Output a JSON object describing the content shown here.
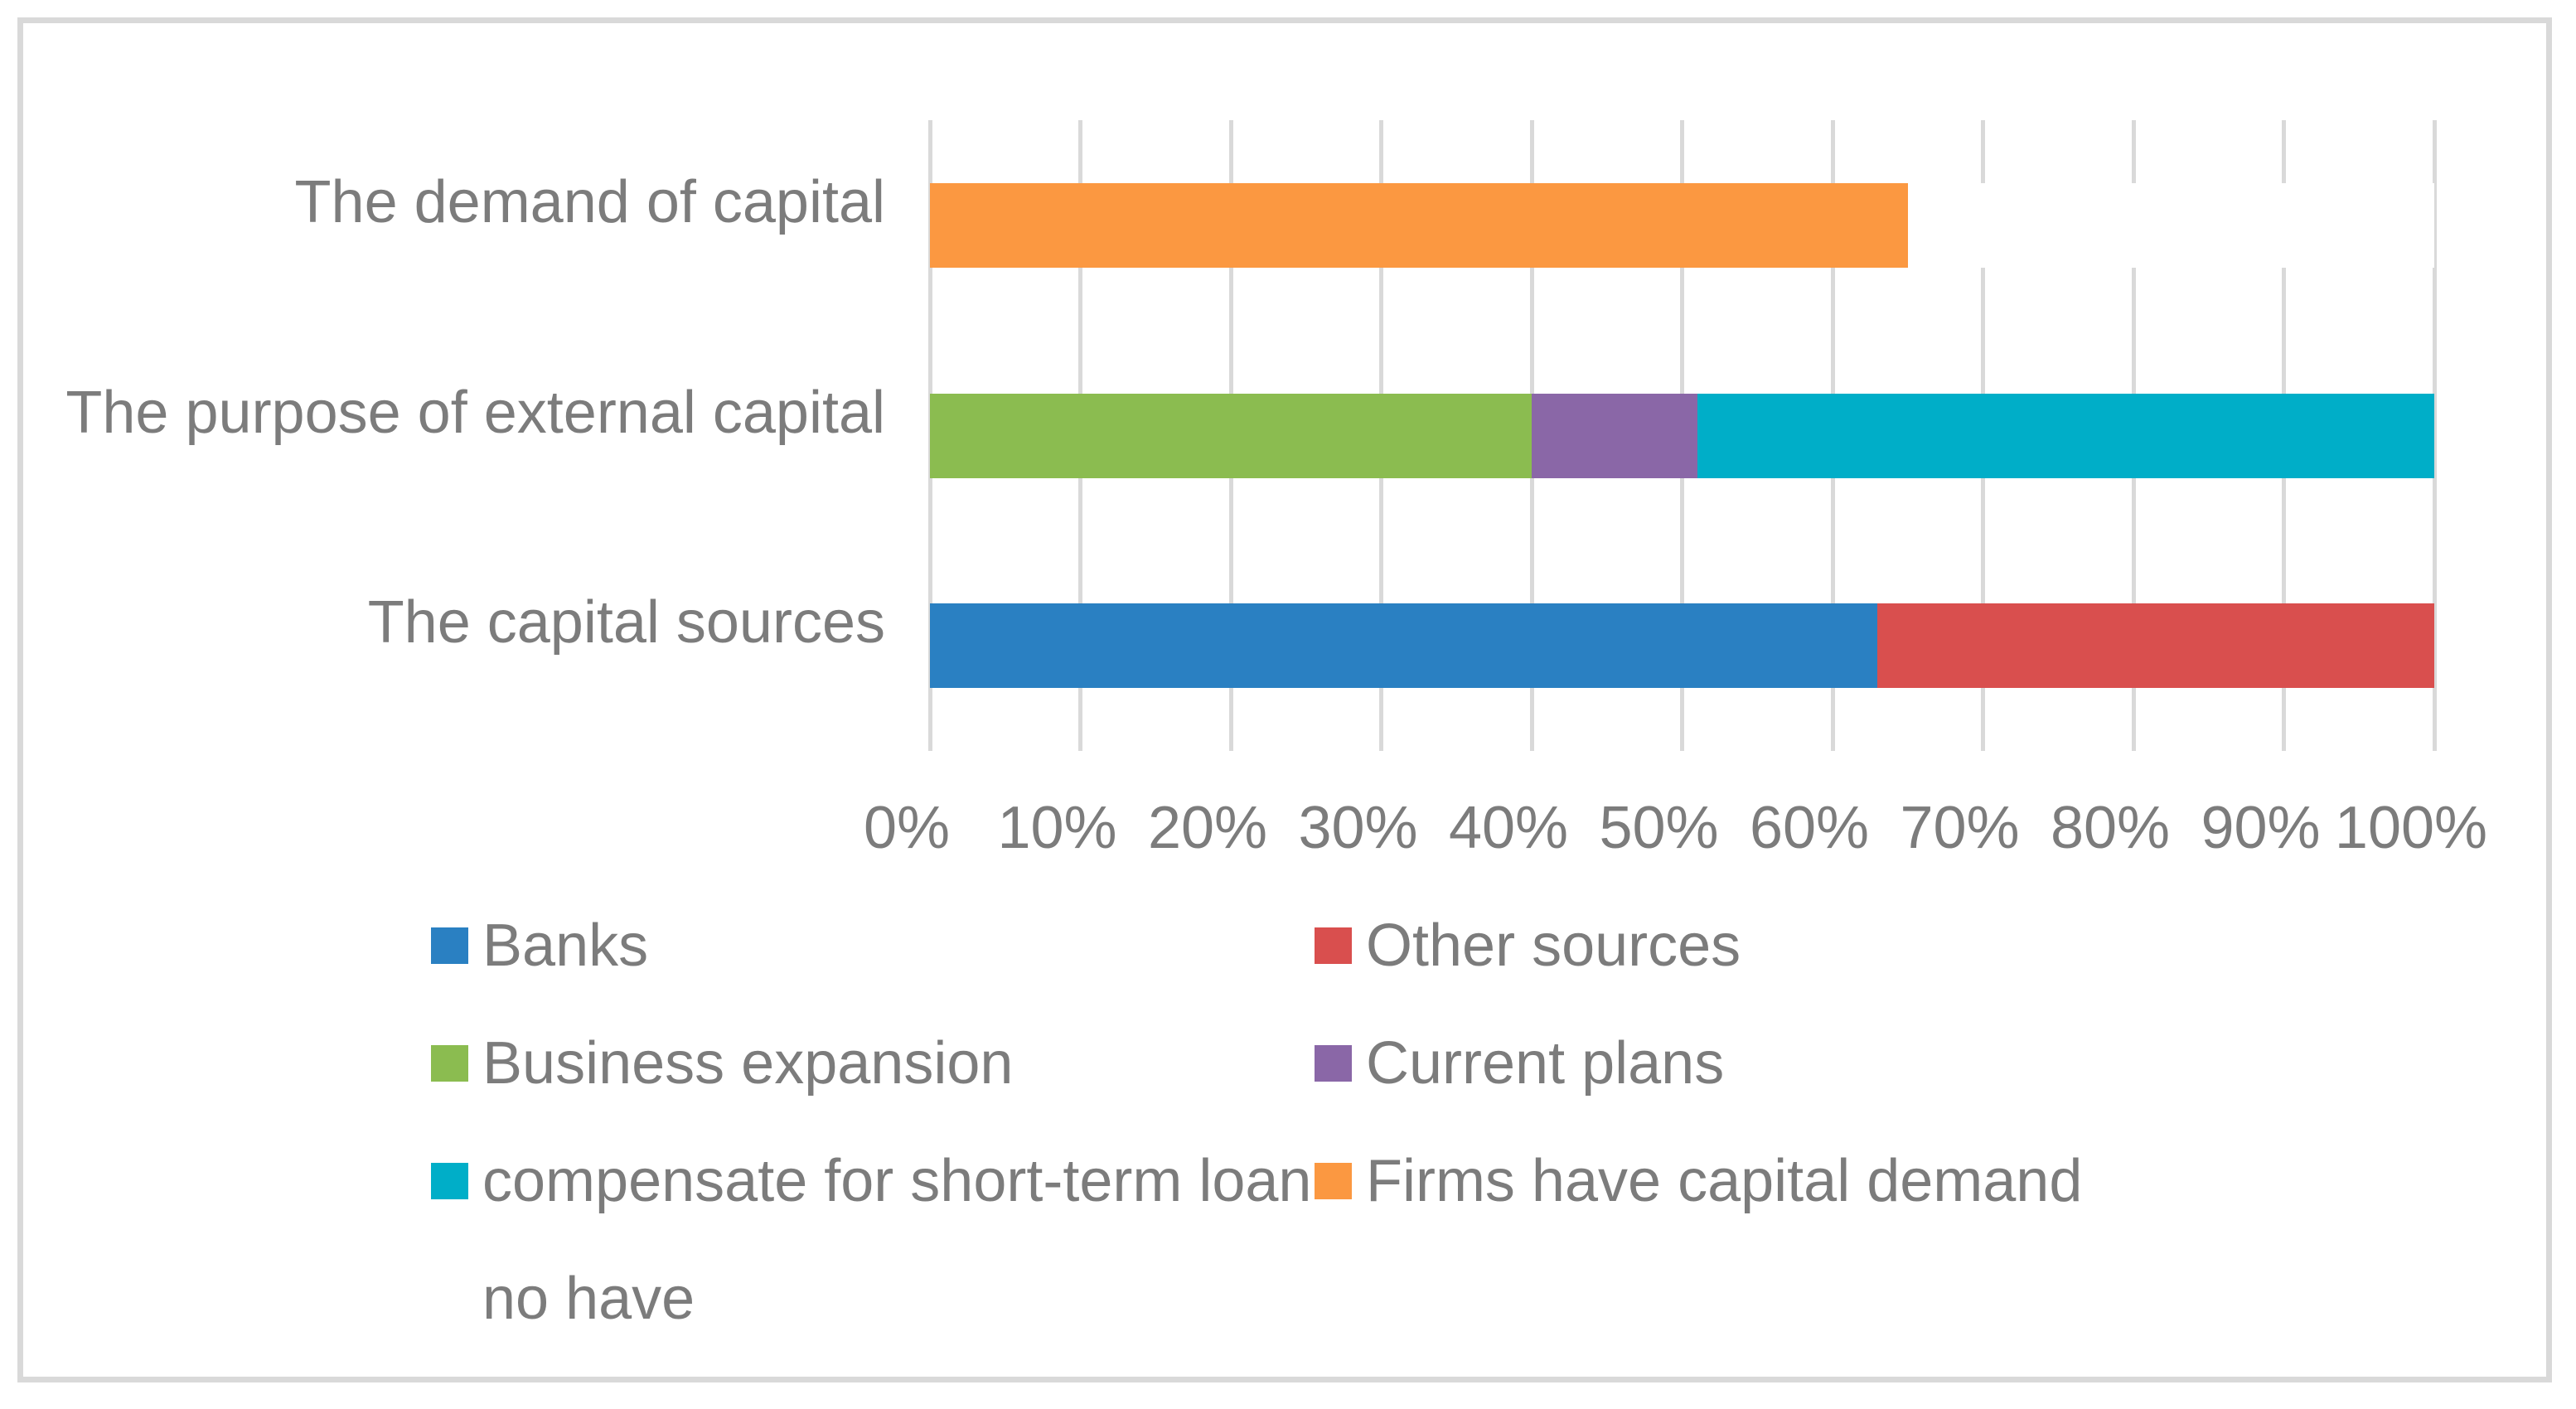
{
  "chart_data": {
    "type": "bar",
    "orientation": "horizontal",
    "stacked": true,
    "title": "",
    "xlabel": "",
    "ylabel": "",
    "xlim": [
      0,
      100
    ],
    "grid": true,
    "legend_position": "bottom",
    "x_ticks": [
      "0%",
      "10%",
      "20%",
      "30%",
      "40%",
      "50%",
      "60%",
      "70%",
      "80%",
      "90%",
      "100%"
    ],
    "categories": [
      "The demand of capital",
      "The purpose of external capital",
      "The capital sources"
    ],
    "series": [
      {
        "name": "Banks",
        "color": "#2A80C2",
        "values": [
          0,
          0,
          63
        ]
      },
      {
        "name": "Other sources",
        "color": "#D94F4E",
        "values": [
          0,
          0,
          37
        ]
      },
      {
        "name": "Business expansion",
        "color": "#8BBC50",
        "values": [
          0,
          40,
          0
        ]
      },
      {
        "name": "Current plans",
        "color": "#8A67A7",
        "values": [
          0,
          11,
          0
        ]
      },
      {
        "name": "compensate for short-term loan",
        "color": "#00AEC8",
        "values": [
          0,
          49,
          0
        ]
      },
      {
        "name": "Firms have capital demand",
        "color": "#FB9841",
        "values": [
          65,
          0,
          0
        ]
      },
      {
        "name": "no have",
        "color": "#FFFFFF",
        "values": [
          35,
          0,
          0
        ]
      }
    ]
  },
  "legend": {
    "items": [
      {
        "label": "Banks",
        "color": "#2A80C2"
      },
      {
        "label": "Other sources",
        "color": "#D94F4E"
      },
      {
        "label": "Business expansion",
        "color": "#8BBC50"
      },
      {
        "label": "Current plans",
        "color": "#8A67A7"
      },
      {
        "label": "compensate for short-term loan",
        "color": "#00AEC8"
      },
      {
        "label": "Firms have capital demand",
        "color": "#FB9841"
      },
      {
        "label": "no have",
        "color": "#FFFFFF"
      }
    ]
  },
  "style_colors": {
    "gridline": "#D9D9D9",
    "frame_border": "#D9D9D9",
    "text": "#7C7C7C",
    "background": "#FFFFFF"
  }
}
